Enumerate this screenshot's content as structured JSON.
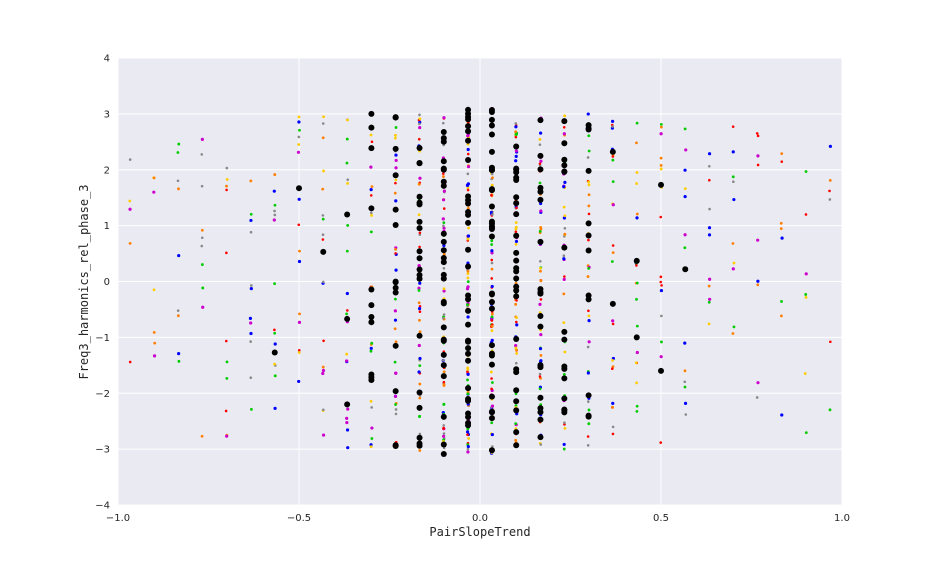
{
  "chart_data": {
    "type": "scatter",
    "xlabel": "PairSlopeTrend",
    "ylabel": "Freq3_harmonics_rel_phase_3",
    "xlim": [
      -1.0,
      1.0
    ],
    "ylim": [
      -4,
      4
    ],
    "x_ticks": [
      -1.0,
      -0.5,
      0.0,
      0.5,
      1.0
    ],
    "x_tick_labels": [
      "−1.0",
      "−0.5",
      "0.0",
      "0.5",
      "1.0"
    ],
    "y_ticks": [
      -4,
      -3,
      -2,
      -1,
      0,
      1,
      2,
      3,
      4
    ],
    "y_tick_labels": [
      "−4",
      "−3",
      "−2",
      "−1",
      "0",
      "1",
      "2",
      "3",
      "4"
    ],
    "grid": true,
    "background": "#eaeaf2",
    "grid_color": "#ffffff",
    "x_columns": [
      -0.967,
      -0.9,
      -0.833,
      -0.767,
      -0.7,
      -0.633,
      -0.567,
      -0.5,
      -0.433,
      -0.367,
      -0.3,
      -0.233,
      -0.167,
      -0.1,
      -0.033,
      0.033,
      0.1,
      0.167,
      0.233,
      0.3,
      0.367,
      0.433,
      0.5,
      0.567,
      0.633,
      0.7,
      0.767,
      0.833,
      0.9,
      0.967
    ],
    "column_density": [
      5,
      7,
      9,
      10,
      11,
      12,
      14,
      16,
      18,
      22,
      28,
      38,
      55,
      75,
      90,
      85,
      70,
      55,
      42,
      32,
      26,
      20,
      16,
      13,
      11,
      10,
      9,
      8,
      7,
      6
    ],
    "column_spread": [
      2.2,
      2.5,
      2.6,
      2.8,
      2.8,
      3.0,
      3.0,
      3.0,
      3.0,
      3.0,
      3.0,
      3.0,
      3.1,
      3.1,
      3.1,
      3.1,
      3.0,
      3.0,
      3.0,
      3.0,
      3.0,
      3.0,
      2.9,
      2.9,
      2.9,
      2.9,
      2.9,
      2.8,
      2.8,
      2.8
    ],
    "series": [
      {
        "color": "#0000ff",
        "size": 1.6
      },
      {
        "color": "#cc00cc",
        "size": 1.6
      },
      {
        "color": "#ff7f00",
        "size": 1.4
      },
      {
        "color": "#00cc00",
        "size": 1.4
      },
      {
        "color": "#888888",
        "size": 1.3
      },
      {
        "color": "#ffcc00",
        "size": 1.4
      },
      {
        "color": "#ff0000",
        "size": 1.3
      },
      {
        "color": "#000000",
        "size": 3.0
      }
    ],
    "highlight_points": [
      [
        -0.3,
        3.0
      ],
      [
        -0.5,
        1.67
      ],
      [
        -0.567,
        -1.27
      ],
      [
        -0.433,
        0.53
      ],
      [
        -0.367,
        1.2
      ],
      [
        -0.367,
        -0.67
      ],
      [
        -0.367,
        -2.2
      ],
      [
        0.233,
        2.87
      ],
      [
        0.367,
        2.32
      ],
      [
        0.5,
        1.73
      ],
      [
        0.5,
        -1.6
      ],
      [
        0.567,
        0.22
      ],
      [
        -0.233,
        -2.93
      ],
      [
        0.1,
        -2.93
      ],
      [
        0.433,
        0.37
      ],
      [
        0.433,
        -1.0
      ],
      [
        0.3,
        -2.4
      ],
      [
        0.367,
        -0.4
      ],
      [
        0.033,
        2.63
      ],
      [
        -0.033,
        2.52
      ]
    ]
  }
}
